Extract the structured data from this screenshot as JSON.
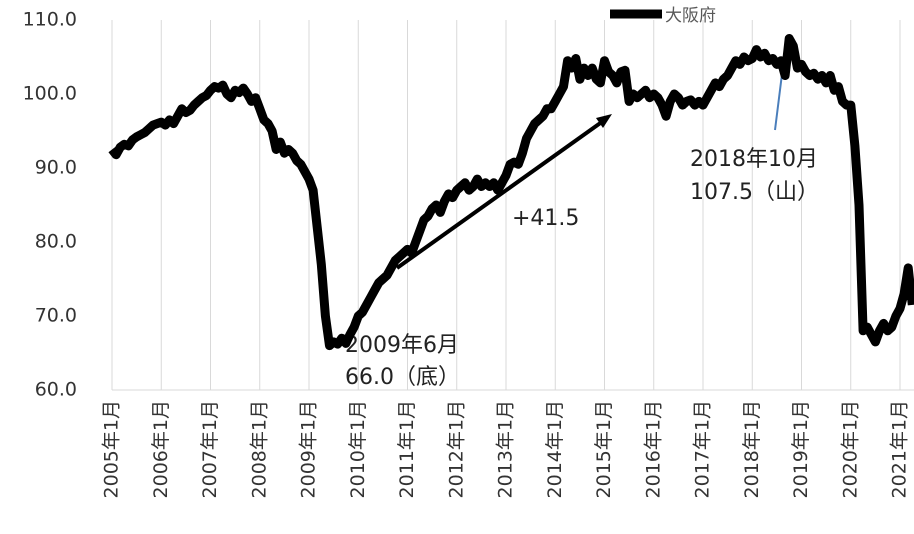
{
  "chart_data": {
    "type": "line",
    "categories": [
      "2005年1月",
      null,
      null,
      null,
      null,
      null,
      null,
      null,
      null,
      null,
      null,
      null,
      "2006年1月",
      null,
      null,
      null,
      null,
      null,
      null,
      null,
      null,
      null,
      null,
      null,
      "2007年1月",
      null,
      null,
      null,
      null,
      null,
      null,
      null,
      null,
      null,
      null,
      null,
      "2008年1月",
      null,
      null,
      null,
      null,
      null,
      null,
      null,
      null,
      null,
      null,
      null,
      "2009年1月",
      null,
      null,
      null,
      null,
      null,
      null,
      null,
      null,
      null,
      null,
      null,
      "2010年1月",
      null,
      null,
      null,
      null,
      null,
      null,
      null,
      null,
      null,
      null,
      null,
      "2011年1月",
      null,
      null,
      null,
      null,
      null,
      null,
      null,
      null,
      null,
      null,
      null,
      "2012年1月",
      null,
      null,
      null,
      null,
      null,
      null,
      null,
      null,
      null,
      null,
      null,
      "2013年1月",
      null,
      null,
      null,
      null,
      null,
      null,
      null,
      null,
      null,
      null,
      null,
      "2014年1月",
      null,
      null,
      null,
      null,
      null,
      null,
      null,
      null,
      null,
      null,
      null,
      "2015年1月",
      null,
      null,
      null,
      null,
      null,
      null,
      null,
      null,
      null,
      null,
      null,
      "2016年1月",
      null,
      null,
      null,
      null,
      null,
      null,
      null,
      null,
      null,
      null,
      null,
      "2017年1月",
      null,
      null,
      null,
      null,
      null,
      null,
      null,
      null,
      null,
      null,
      null,
      "2018年1月",
      null,
      null,
      null,
      null,
      null,
      null,
      null,
      null,
      null,
      null,
      null,
      "2019年1月",
      null,
      null,
      null,
      null,
      null,
      null,
      null,
      null,
      null,
      null,
      null,
      "2020年1月",
      null,
      null,
      null,
      null,
      null,
      null,
      null,
      null,
      null,
      null,
      null,
      "2021年1月",
      null,
      null,
      null
    ],
    "series": [
      {
        "name": "大阪府",
        "color": "#000000",
        "values": [
          92.5,
          91.8,
          92.8,
          93.2,
          93.0,
          93.8,
          94.2,
          94.5,
          94.8,
          95.3,
          95.8,
          96.0,
          96.2,
          95.8,
          96.5,
          96.0,
          97.0,
          98.0,
          97.5,
          97.8,
          98.5,
          99.0,
          99.5,
          99.8,
          100.5,
          101.0,
          100.8,
          101.2,
          100.0,
          99.5,
          100.5,
          100.2,
          100.8,
          100.0,
          99.0,
          99.5,
          98.0,
          96.5,
          96.0,
          95.0,
          92.5,
          93.5,
          92.0,
          92.5,
          92.0,
          91.0,
          90.5,
          89.5,
          88.5,
          87.0,
          82.0,
          77.0,
          70.0,
          66.0,
          66.5,
          66.2,
          67.0,
          66.3,
          67.5,
          68.5,
          70.0,
          70.5,
          71.5,
          72.5,
          73.5,
          74.5,
          75.0,
          75.5,
          76.5,
          77.5,
          78.0,
          78.5,
          79.0,
          78.5,
          80.0,
          81.5,
          83.0,
          83.5,
          84.5,
          85.0,
          84.0,
          85.5,
          86.5,
          86.0,
          87.0,
          87.5,
          88.0,
          87.0,
          87.5,
          88.5,
          87.5,
          88.0,
          87.5,
          88.0,
          87.0,
          88.0,
          89.0,
          90.5,
          90.8,
          90.5,
          92.0,
          94.0,
          95.0,
          96.0,
          96.5,
          97.0,
          98.0,
          98.0,
          99.0,
          100.0,
          101.0,
          104.5,
          103.5,
          104.8,
          102.0,
          103.5,
          102.5,
          103.5,
          102.0,
          101.5,
          104.5,
          103.0,
          102.5,
          101.5,
          103.0,
          103.2,
          99.0,
          100.0,
          99.5,
          100.0,
          100.5,
          99.5,
          100.0,
          99.5,
          98.5,
          97.0,
          99.0,
          100.0,
          99.5,
          98.5,
          99.0,
          99.2,
          98.5,
          99.0,
          98.5,
          99.5,
          100.5,
          101.5,
          101.0,
          102.0,
          102.5,
          103.5,
          104.5,
          104.0,
          105.0,
          104.5,
          104.8,
          106.0,
          105.0,
          105.5,
          104.5,
          104.8,
          104.0,
          104.5,
          102.5,
          107.5,
          106.5,
          103.5,
          104.0,
          103.0,
          102.5,
          102.8,
          102.0,
          102.5,
          101.5,
          102.5,
          100.5,
          101.0,
          99.0,
          98.5,
          98.5,
          93.0,
          85.0,
          68.0,
          68.5,
          67.5,
          66.5,
          68.0,
          69.0,
          68.0,
          68.5,
          70.0,
          71.0,
          73.0,
          76.5,
          71.5
        ]
      }
    ],
    "ylim": [
      60,
      110
    ],
    "yticks": [
      {
        "value": 60,
        "label": "60.0"
      },
      {
        "value": 70,
        "label": "70.0"
      },
      {
        "value": 80,
        "label": "80.0"
      },
      {
        "value": 90,
        "label": "90.0"
      },
      {
        "value": 100,
        "label": "100.0"
      },
      {
        "value": 110,
        "label": "110.0"
      }
    ],
    "annotations": [
      "2009年6月",
      "66.0（底）",
      "2018年10月",
      "107.5（山）",
      "+41.5"
    ],
    "grid": true
  }
}
